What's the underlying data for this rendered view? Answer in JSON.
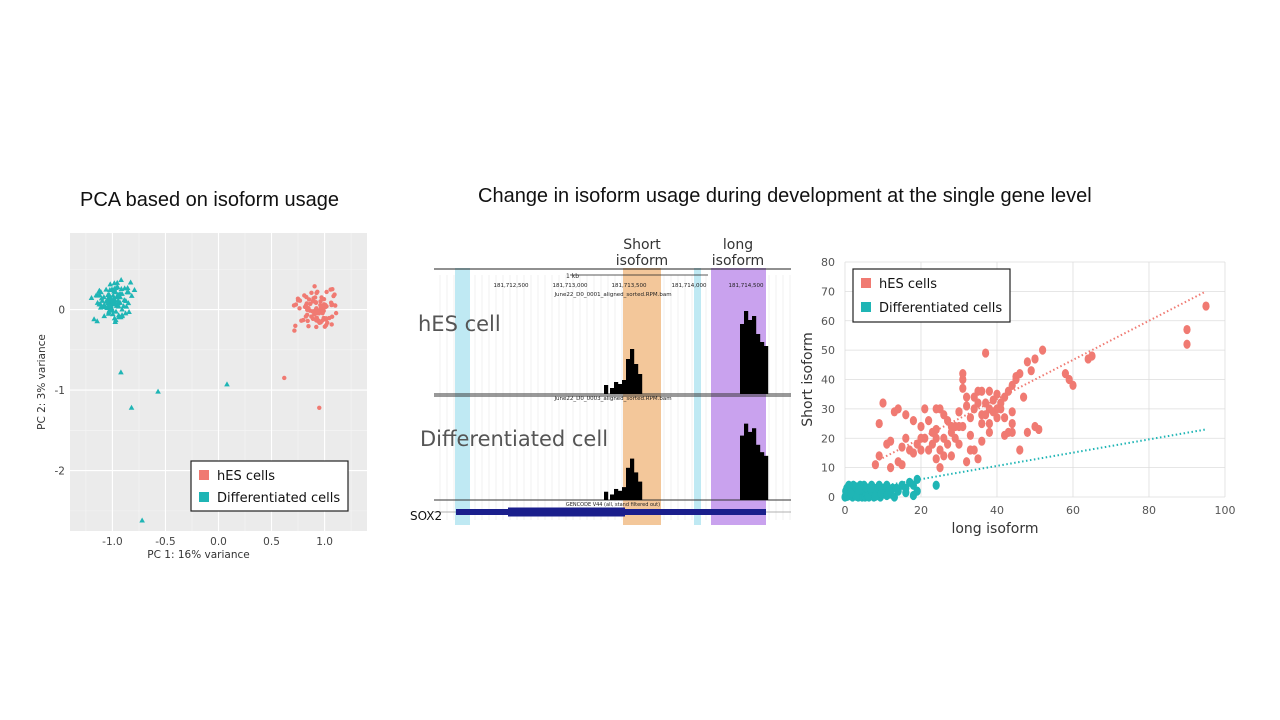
{
  "titles": {
    "pca": "PCA based on isoform usage",
    "development": "Change in isoform usage during development at the single gene level"
  },
  "colors": {
    "hes": "#f07a72",
    "diff": "#1fb5b5",
    "short_isoform_band": "#f3c79a",
    "long_isoform_band": "#c9a2ee",
    "exon_band": "#bfe9f3",
    "track": "#000000",
    "gene": "#1a1e8c"
  },
  "chart_data": [
    {
      "type": "scatter",
      "title": "",
      "xlabel": "PC 1: 16% variance",
      "ylabel": "PC 2: 3% variance",
      "xlim": [
        -1.4,
        1.4
      ],
      "ylim": [
        -2.75,
        0.95
      ],
      "xticks": [
        -1.0,
        -0.5,
        0.0,
        0.5,
        1.0
      ],
      "xtick_labels": [
        "-1.0",
        "-0.5",
        "0.0",
        "0.5",
        "1.0"
      ],
      "yticks": [
        0,
        -1,
        -2
      ],
      "ytick_labels": [
        "0",
        "-1",
        "-2"
      ],
      "grid": true,
      "legend_position": "bottom-right",
      "series": [
        {
          "name": "hES cells",
          "marker": "circle",
          "center": [
            0.95,
            0.0
          ],
          "spread": [
            0.18,
            0.24
          ],
          "n": 95,
          "outliers": [
            [
              0.95,
              -1.22
            ],
            [
              0.62,
              -0.85
            ]
          ]
        },
        {
          "name": "Differentiated cells",
          "marker": "triangle",
          "center": [
            -1.0,
            0.1
          ],
          "spread": [
            0.17,
            0.27
          ],
          "n": 110,
          "outliers": [
            [
              -0.57,
              -1.02
            ],
            [
              -0.82,
              -1.22
            ],
            [
              -0.72,
              -2.62
            ],
            [
              0.08,
              -0.93
            ],
            [
              -0.92,
              -0.78
            ]
          ]
        }
      ]
    },
    {
      "type": "genome-track",
      "region_label": "1 kb",
      "coordinates": [
        "181,712,500",
        "181,713,000",
        "181,713,500",
        "181,714,000",
        "181,714,500"
      ],
      "track1_name": "June22_D0_0001_aligned_sorted.RPM.bam",
      "track2_name": "June22_D0_0003_aligned_sorted.RPM.bam",
      "gene_track_name": "GENCODE V44 (all, stand filtered out)",
      "sample_labels": [
        "hES cell",
        "Differentiated cell"
      ],
      "band_labels": [
        "Short\nisoform",
        "long\nisoform"
      ],
      "gene_label": "SOX2"
    },
    {
      "type": "scatter",
      "title": "",
      "xlabel": "long isoform",
      "ylabel": "Short isoform",
      "xlim": [
        0,
        100
      ],
      "ylim": [
        0,
        80
      ],
      "xticks": [
        0,
        20,
        40,
        60,
        80,
        100
      ],
      "yticks": [
        0,
        10,
        20,
        30,
        40,
        50,
        60,
        70,
        80
      ],
      "grid": true,
      "legend_position": "top-left",
      "series": [
        {
          "name": "hES cells",
          "points": [
            [
              95,
              65
            ],
            [
              90,
              57
            ],
            [
              90,
              52
            ],
            [
              65,
              48
            ],
            [
              64,
              47
            ],
            [
              58,
              42
            ],
            [
              59,
              40
            ],
            [
              60,
              38
            ],
            [
              52,
              50
            ],
            [
              50,
              47
            ],
            [
              49,
              43
            ],
            [
              48,
              46
            ],
            [
              46,
              42
            ],
            [
              45,
              41
            ],
            [
              44,
              38
            ],
            [
              43,
              36
            ],
            [
              42,
              34
            ],
            [
              41,
              32
            ],
            [
              40,
              35
            ],
            [
              39,
              33
            ],
            [
              38,
              30
            ],
            [
              37,
              49
            ],
            [
              36,
              28
            ],
            [
              35,
              36
            ],
            [
              34,
              30
            ],
            [
              33,
              27
            ],
            [
              32,
              31
            ],
            [
              31,
              40
            ],
            [
              31,
              42
            ],
            [
              30,
              29
            ],
            [
              29,
              24
            ],
            [
              28,
              22
            ],
            [
              27,
              26
            ],
            [
              26,
              28
            ],
            [
              25,
              30
            ],
            [
              24,
              20
            ],
            [
              23,
              22
            ],
            [
              22,
              26
            ],
            [
              21,
              30
            ],
            [
              20,
              24
            ],
            [
              19,
              18
            ],
            [
              18,
              15
            ],
            [
              17,
              16
            ],
            [
              16,
              20
            ],
            [
              15,
              17
            ],
            [
              14,
              30
            ],
            [
              13,
              29
            ],
            [
              12,
              19
            ],
            [
              11,
              18
            ],
            [
              10,
              32
            ],
            [
              9,
              25
            ],
            [
              9,
              14
            ],
            [
              8,
              11
            ],
            [
              22,
              16
            ],
            [
              25,
              16
            ],
            [
              28,
              14
            ],
            [
              30,
              18
            ],
            [
              32,
              12
            ],
            [
              34,
              16
            ],
            [
              36,
              19
            ],
            [
              38,
              25
            ],
            [
              40,
              27
            ],
            [
              42,
              27
            ],
            [
              44,
              25
            ],
            [
              46,
              16
            ],
            [
              48,
              22
            ],
            [
              50,
              24
            ],
            [
              51,
              23
            ],
            [
              35,
              13
            ],
            [
              33,
              21
            ],
            [
              29,
              20
            ],
            [
              27,
              18
            ],
            [
              26,
              14
            ],
            [
              24,
              23
            ],
            [
              33,
              16
            ],
            [
              31,
              24
            ],
            [
              30,
              24
            ],
            [
              36,
              25
            ],
            [
              38,
              22
            ],
            [
              37,
              28
            ],
            [
              39,
              29
            ],
            [
              41,
              30
            ],
            [
              42,
              21
            ],
            [
              44,
              29
            ],
            [
              47,
              34
            ],
            [
              45,
              40
            ],
            [
              31,
              37
            ],
            [
              34,
              34
            ],
            [
              35,
              32
            ],
            [
              37,
              32
            ],
            [
              43,
              22
            ],
            [
              16,
              28
            ],
            [
              18,
              26
            ],
            [
              20,
              20
            ],
            [
              23,
              18
            ],
            [
              25,
              10
            ],
            [
              21,
              20
            ],
            [
              15,
              11
            ],
            [
              14,
              12
            ],
            [
              12,
              10
            ],
            [
              24,
              13
            ],
            [
              44,
              22
            ],
            [
              40,
              30
            ],
            [
              38,
              36
            ],
            [
              36,
              36
            ],
            [
              32,
              34
            ],
            [
              30,
              29
            ],
            [
              28,
              24
            ],
            [
              26,
              20
            ],
            [
              24,
              30
            ],
            [
              20,
              16
            ]
          ]
        },
        {
          "name": "Differentiated cells",
          "points": [
            [
              0,
              0
            ],
            [
              0.3,
              1
            ],
            [
              0.6,
              0.2
            ],
            [
              1,
              2
            ],
            [
              1.2,
              0.5
            ],
            [
              1.5,
              3
            ],
            [
              1.8,
              1
            ],
            [
              2,
              0
            ],
            [
              2.2,
              4
            ],
            [
              2.5,
              2
            ],
            [
              2.8,
              0.5
            ],
            [
              3,
              3
            ],
            [
              3.2,
              1
            ],
            [
              3.5,
              0
            ],
            [
              3.8,
              2
            ],
            [
              4,
              4
            ],
            [
              4.2,
              1
            ],
            [
              4.5,
              0
            ],
            [
              4.8,
              3
            ],
            [
              5,
              2
            ],
            [
              5.3,
              0
            ],
            [
              5.6,
              1
            ],
            [
              6,
              3
            ],
            [
              6.3,
              0
            ],
            [
              6.6,
              2
            ],
            [
              7,
              4
            ],
            [
              7.3,
              1
            ],
            [
              7.6,
              0
            ],
            [
              8,
              2
            ],
            [
              8.3,
              3
            ],
            [
              8.6,
              1
            ],
            [
              9,
              4
            ],
            [
              9.3,
              0
            ],
            [
              9.6,
              2
            ],
            [
              10,
              3
            ],
            [
              10.5,
              1
            ],
            [
              11,
              4
            ],
            [
              11.5,
              2
            ],
            [
              12,
              1
            ],
            [
              12.5,
              3
            ],
            [
              13,
              0
            ],
            [
              14,
              2
            ],
            [
              15,
              4
            ],
            [
              16,
              3
            ],
            [
              17,
              5
            ],
            [
              18,
              4
            ],
            [
              19,
              6
            ],
            [
              19,
              2
            ],
            [
              24,
              4
            ],
            [
              1,
              4
            ],
            [
              2,
              1
            ],
            [
              3,
              0.2
            ],
            [
              4,
              2.5
            ],
            [
              5,
              4
            ],
            [
              6,
              0.5
            ],
            [
              7,
              2
            ],
            [
              8,
              0.2
            ],
            [
              0.5,
              3
            ],
            [
              0.2,
              2
            ],
            [
              1.5,
              1.5
            ],
            [
              2.8,
              3.5
            ],
            [
              3.6,
              2.5
            ],
            [
              5.5,
              3.2
            ],
            [
              6.8,
              3
            ],
            [
              9.5,
              1.2
            ],
            [
              11,
              0.5
            ],
            [
              13.5,
              3
            ],
            [
              16,
              1.5
            ],
            [
              18,
              0.5
            ]
          ]
        }
      ],
      "trendlines": [
        {
          "series": "hES cells",
          "from": [
            8,
            12
          ],
          "to": [
            95,
            70
          ]
        },
        {
          "series": "Differentiated cells",
          "from": [
            2,
            2
          ],
          "to": [
            95,
            23
          ]
        }
      ]
    }
  ]
}
